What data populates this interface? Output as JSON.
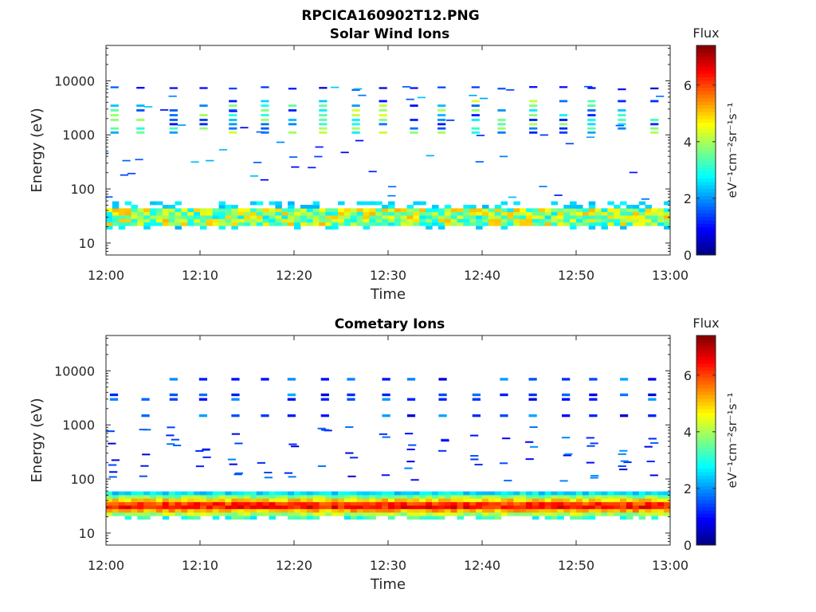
{
  "figure": {
    "title": "RPCICA160902T12.PNG"
  },
  "colors": {
    "jet": [
      "#00007f",
      "#0000ff",
      "#007fff",
      "#00ffff",
      "#7fff7f",
      "#ffff00",
      "#ff7f00",
      "#ff0000",
      "#7f0000"
    ],
    "axis": "#262626",
    "text": "#000000"
  },
  "chart_data": [
    {
      "type": "heatmap",
      "title": "Solar Wind Ions",
      "xlabel": "Time",
      "ylabel": "Energy (eV)",
      "xlim": [
        "12:00",
        "13:00"
      ],
      "xticks": [
        "12:00",
        "12:10",
        "12:20",
        "12:30",
        "12:40",
        "12:50",
        "13:00"
      ],
      "yscale": "log",
      "ylim": [
        6,
        45000
      ],
      "yticks": [
        "10",
        "100",
        "1000",
        "10000"
      ],
      "colorbar": {
        "title": "Flux",
        "label": "eV⁻¹cm⁻²sr⁻¹s⁻¹",
        "range": [
          0,
          7.4
        ],
        "ticks": [
          "0",
          "2",
          "4",
          "6"
        ]
      },
      "peak_beam_energy_range": [
        1000,
        4000
      ],
      "low_energy_band_range": [
        24,
        45
      ],
      "low_energy_band_flux": 3.6
    },
    {
      "type": "heatmap",
      "title": "Cometary Ions",
      "xlabel": "Time",
      "ylabel": "Energy (eV)",
      "xlim": [
        "12:00",
        "13:00"
      ],
      "xticks": [
        "12:00",
        "12:10",
        "12:20",
        "12:30",
        "12:40",
        "12:50",
        "13:00"
      ],
      "yscale": "log",
      "ylim": [
        6,
        45000
      ],
      "yticks": [
        "10",
        "100",
        "1000",
        "10000"
      ],
      "colorbar": {
        "title": "Flux",
        "label": "eV⁻¹cm⁻²sr⁻¹s⁻¹",
        "range": [
          0,
          7.4
        ],
        "ticks": [
          "0",
          "2",
          "4",
          "6"
        ]
      },
      "low_energy_band_range": [
        20,
        55
      ],
      "low_energy_band_peak_flux": 6.6
    }
  ]
}
